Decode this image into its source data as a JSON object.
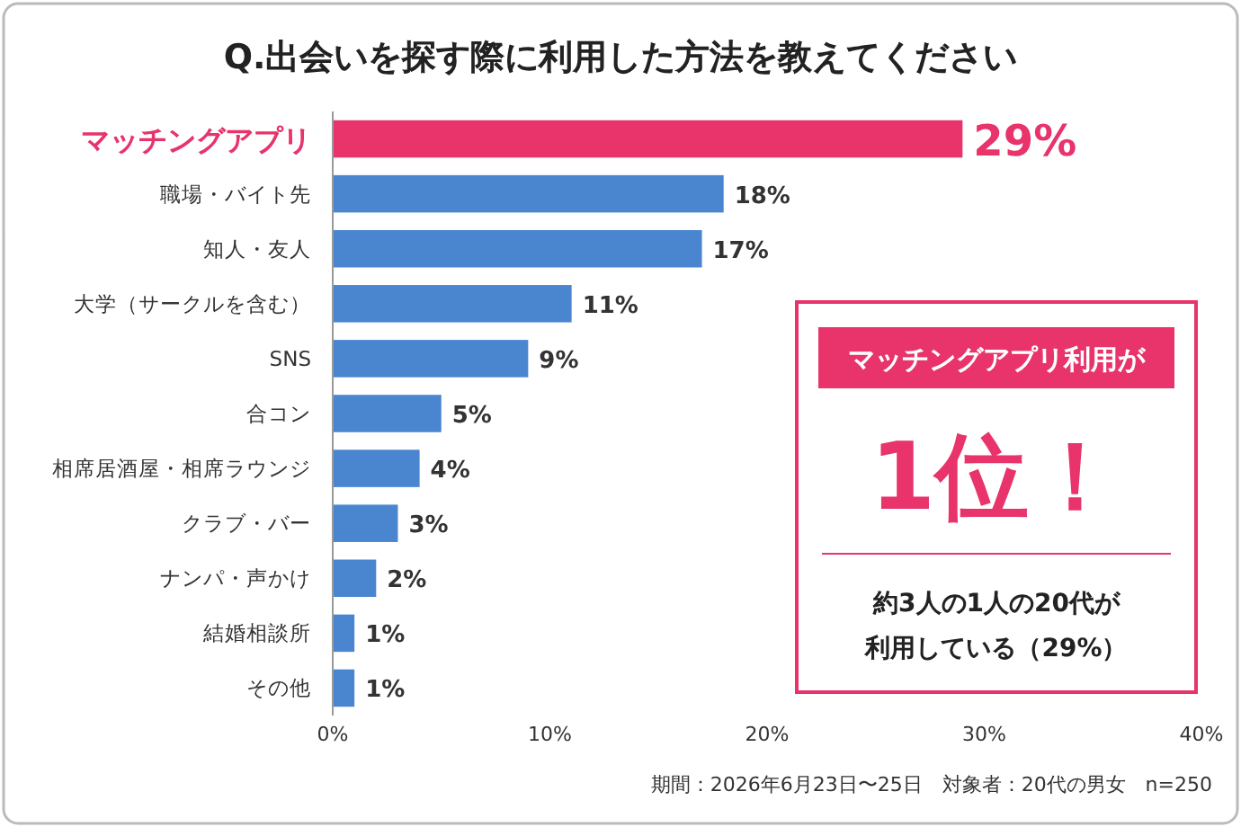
{
  "chart_data": {
    "type": "bar",
    "orientation": "horizontal",
    "title": "Q.出会いを探す際に利用した方法を教えてください",
    "categories": [
      "マッチングアプリ",
      "職場・バイト先",
      "知人・友人",
      "大学（サークルを含む）",
      "SNS",
      "合コン",
      "相席居酒屋・相席ラウンジ",
      "クラブ・バー",
      "ナンパ・声かけ",
      "結婚相談所",
      "その他"
    ],
    "values": [
      29,
      18,
      17,
      11,
      9,
      5,
      4,
      3,
      2,
      1,
      1
    ],
    "value_labels": [
      "29%",
      "18%",
      "17%",
      "11%",
      "9%",
      "5%",
      "4%",
      "3%",
      "2%",
      "1%",
      "1%"
    ],
    "colors": [
      "#e8336b",
      "#4a86d0",
      "#4a86d0",
      "#4a86d0",
      "#4a86d0",
      "#4a86d0",
      "#4a86d0",
      "#4a86d0",
      "#4a86d0",
      "#4a86d0",
      "#4a86d0"
    ],
    "xlim": [
      0,
      40
    ],
    "xticks": [
      {
        "value": 0,
        "label": "0%"
      },
      {
        "value": 10,
        "label": "10%"
      },
      {
        "value": 20,
        "label": "20%"
      },
      {
        "value": 30,
        "label": "30%"
      },
      {
        "value": 40,
        "label": "40%"
      }
    ],
    "annotations": [
      "マッチングアプリ利用が",
      "1位！",
      "約3人の1人の20代が",
      "利用している（29%）",
      "期間：2026年6月23日〜25日　対象者：20代の男女　n=250"
    ]
  }
}
